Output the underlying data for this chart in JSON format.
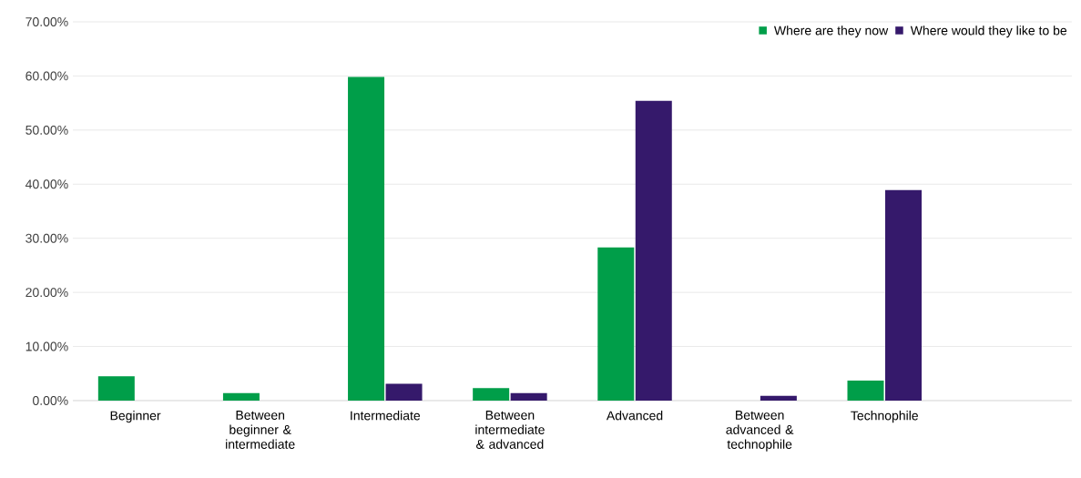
{
  "chart_data": {
    "type": "bar",
    "categories": [
      "Beginner",
      "Between beginner & intermediate",
      "Intermediate",
      "Between intermediate & advanced",
      "Advanced",
      "Between advanced & technophile",
      "Technophile",
      null
    ],
    "series": [
      {
        "name": "Where are they now",
        "color": "#009e49",
        "values": [
          4.5,
          1.4,
          59.8,
          2.3,
          28.3,
          0,
          3.7,
          null
        ]
      },
      {
        "name": "Where would they like to be",
        "color": "#35196b",
        "values": [
          0,
          0,
          3.1,
          1.4,
          55.4,
          0.9,
          38.9,
          null
        ]
      }
    ],
    "ylim": [
      0,
      70
    ],
    "yticks": [
      {
        "value": 0,
        "label": "0.00%"
      },
      {
        "value": 10,
        "label": "10.00%"
      },
      {
        "value": 20,
        "label": "20.00%"
      },
      {
        "value": 30,
        "label": "30.00%"
      },
      {
        "value": 40,
        "label": "40.00%"
      },
      {
        "value": 50,
        "label": "50.00%"
      },
      {
        "value": 60,
        "label": "60.00%"
      },
      {
        "value": 70,
        "label": "70.00%"
      }
    ],
    "grid": "y",
    "legend": "top right"
  }
}
